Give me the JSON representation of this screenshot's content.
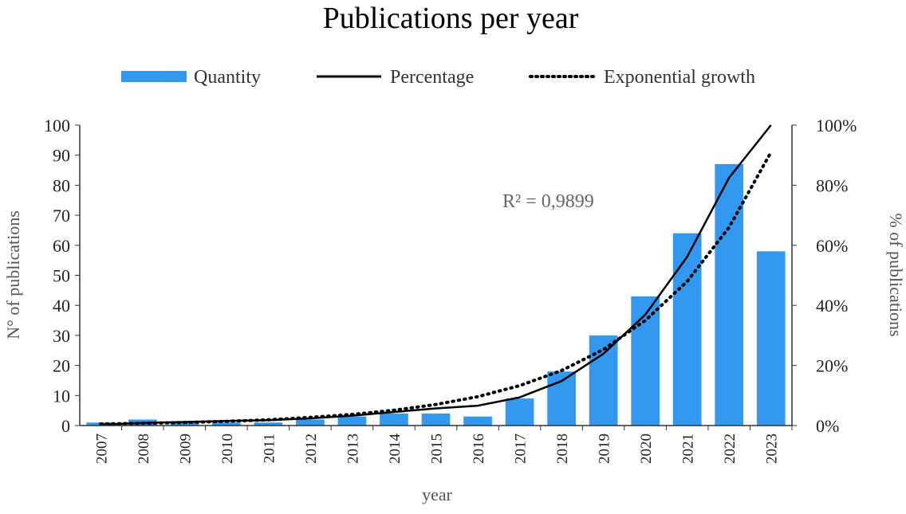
{
  "chart_data": {
    "type": "bar",
    "title": "Publications  per year",
    "xlabel": "year",
    "ylabel": "N° of publications",
    "y2label": "% of publications",
    "ylim": [
      0,
      100
    ],
    "y2lim": [
      0,
      100
    ],
    "yticks": [
      "0",
      "10",
      "20",
      "30",
      "40",
      "50",
      "60",
      "70",
      "80",
      "90",
      "100"
    ],
    "y2ticks": [
      "0%",
      "20%",
      "40%",
      "60%",
      "80%",
      "100%"
    ],
    "categories": [
      "2007",
      "2008",
      "2009",
      "2010",
      "2011",
      "2012",
      "2013",
      "2014",
      "2015",
      "2016",
      "2017",
      "2018",
      "2019",
      "2020",
      "2021",
      "2022",
      "2023"
    ],
    "legend": {
      "placement": "top",
      "quantity": "Quantity",
      "percentage": "Percentage",
      "exponential": "Exponential growth"
    },
    "annotation": "R² = 0,9899",
    "colors": {
      "bar": "#3399f0",
      "line": "#000000"
    },
    "series": [
      {
        "name": "Quantity",
        "type": "bar",
        "axis": "left",
        "values": [
          1,
          2,
          1,
          1,
          1,
          2,
          3,
          4,
          4,
          3,
          9,
          18,
          30,
          43,
          64,
          87,
          58
        ]
      },
      {
        "name": "Percentage",
        "type": "line",
        "axis": "right",
        "values": [
          0.3,
          0.9,
          1.2,
          1.5,
          1.8,
          2.4,
          3.3,
          4.5,
          5.7,
          6.6,
          9.4,
          14.8,
          23.9,
          36.9,
          56.2,
          82.5,
          100
        ]
      },
      {
        "name": "Exponential growth",
        "type": "dotted-line",
        "axis": "right",
        "values": [
          0.54,
          0.74,
          1.0,
          1.4,
          1.9,
          2.7,
          3.7,
          5.1,
          7.0,
          9.6,
          13.3,
          18.3,
          25.3,
          35,
          48,
          66,
          91
        ]
      }
    ]
  }
}
